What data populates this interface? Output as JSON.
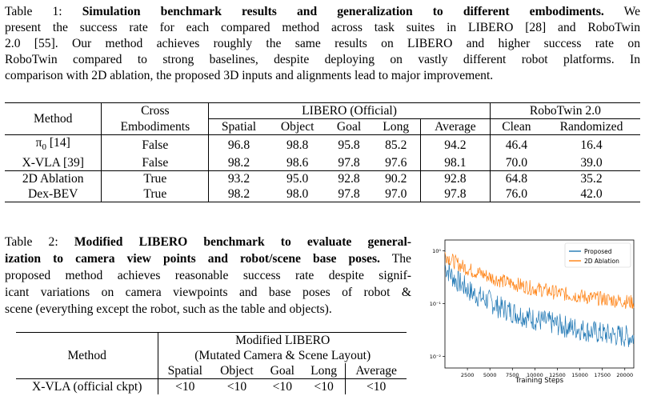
{
  "table1": {
    "caption_lines": [
      {
        "lead": "Table 1: ",
        "bold": "Simulation benchmark results and generalization to different embodiments.",
        "rest": " We"
      },
      {
        "lead": "",
        "bold": "",
        "rest": "present the success rate for each compared method across task suites in LIBERO [28] and RoboTwin"
      },
      {
        "lead": "",
        "bold": "",
        "rest": "2.0 [55]. Our method achieves roughly the same results on LIBERO and higher success rate on"
      },
      {
        "lead": "",
        "bold": "",
        "rest": "RoboTwin compared to strong baselines, despite deploying on vastly different robot platforms. In"
      },
      {
        "lead": "",
        "bold": "",
        "rest": "comparison with 2D ablation, the proposed 3D inputs and alignments lead to major improvement."
      }
    ],
    "header": {
      "method": "Method",
      "cross_top": "Cross",
      "cross_bottom": "Embodiments",
      "libero": "LIBERO (Official)",
      "robotwin": "RoboTwin 2.0",
      "cols": [
        "Spatial",
        "Object",
        "Goal",
        "Long",
        "Average",
        "Clean",
        "Randomized"
      ]
    },
    "rows": [
      {
        "method": "π",
        "sub": "0",
        "ref": " [14]",
        "cells": [
          "False",
          "96.8",
          "98.8",
          "95.8",
          "85.2",
          "94.2",
          "46.4",
          "16.4"
        ]
      },
      {
        "method": "X-VLA",
        "sub": "",
        "ref": " [39]",
        "cells": [
          "False",
          "98.2",
          "98.6",
          "97.8",
          "97.6",
          "98.1",
          "70.0",
          "39.0"
        ]
      },
      {
        "method": "2D Ablation",
        "sub": "",
        "ref": "",
        "cells": [
          "True",
          "93.2",
          "95.0",
          "92.8",
          "90.2",
          "92.8",
          "64.8",
          "35.2"
        ]
      },
      {
        "method": "Dex-BEV",
        "sub": "",
        "ref": "",
        "cells": [
          "True",
          "98.2",
          "98.0",
          "97.8",
          "97.0",
          "97.8",
          "76.0",
          "42.0"
        ]
      }
    ]
  },
  "table2": {
    "caption_lines": [
      {
        "lead": "Table 2: ",
        "bold": "Modified LIBERO benchmark to evaluate general-",
        "rest": ""
      },
      {
        "lead": "",
        "bold": "ization to camera view points and robot/scene base poses.",
        "rest": " The"
      },
      {
        "lead": "",
        "bold": "",
        "rest": "proposed method achieves reasonable success rate despite signif-"
      },
      {
        "lead": "",
        "bold": "",
        "rest": "icant variations on camera viewpoints and base poses of robot &"
      },
      {
        "lead": "",
        "bold": "",
        "rest": "scene (everything except the robot, such as the table and objects)."
      }
    ],
    "header": {
      "method": "Method",
      "group_top": "Modified LIBERO",
      "group_bottom": "(Mutated Camera & Scene Layout)",
      "cols": [
        "Spatial",
        "Object",
        "Goal",
        "Long",
        "Average"
      ]
    },
    "rows": [
      {
        "method": "X-VLA (official ckpt)",
        "cells": [
          "<10",
          "<10",
          "<10",
          "<10",
          "<10"
        ]
      }
    ]
  },
  "chart_data": {
    "type": "line",
    "xlabel": "Training Steps",
    "ylabel": "",
    "yscale": "log",
    "xlim": [
      0,
      21000
    ],
    "ylim": [
      0.006,
      1.6
    ],
    "xticks": [
      2500,
      5000,
      7500,
      10000,
      12500,
      15000,
      17500,
      20000
    ],
    "yticks": [
      {
        "value": 1,
        "label": "10⁰"
      },
      {
        "value": 0.1,
        "label": "10⁻¹"
      },
      {
        "value": 0.01,
        "label": "10⁻²"
      }
    ],
    "grid": false,
    "legend": "top-right",
    "series": [
      {
        "name": "Proposed",
        "color": "#1f77b4",
        "x": [
          0,
          1000,
          2000,
          3000,
          4000,
          5000,
          6000,
          7000,
          8000,
          9000,
          10000,
          11000,
          12000,
          13000,
          14000,
          15000,
          16000,
          17000,
          18000,
          19000,
          20000,
          21000
        ],
        "y": [
          0.5,
          0.3,
          0.22,
          0.16,
          0.13,
          0.11,
          0.085,
          0.075,
          0.065,
          0.057,
          0.05,
          0.046,
          0.042,
          0.038,
          0.035,
          0.033,
          0.03,
          0.028,
          0.026,
          0.025,
          0.024,
          0.023
        ]
      },
      {
        "name": "2D Ablation",
        "color": "#ff7f0e",
        "x": [
          0,
          1000,
          2000,
          3000,
          4000,
          5000,
          6000,
          7000,
          8000,
          9000,
          10000,
          11000,
          12000,
          13000,
          14000,
          15000,
          16000,
          17000,
          18000,
          19000,
          20000,
          21000
        ],
        "y": [
          0.85,
          0.62,
          0.5,
          0.42,
          0.37,
          0.32,
          0.28,
          0.25,
          0.23,
          0.21,
          0.19,
          0.18,
          0.165,
          0.155,
          0.145,
          0.14,
          0.13,
          0.125,
          0.12,
          0.115,
          0.11,
          0.105
        ]
      }
    ]
  }
}
